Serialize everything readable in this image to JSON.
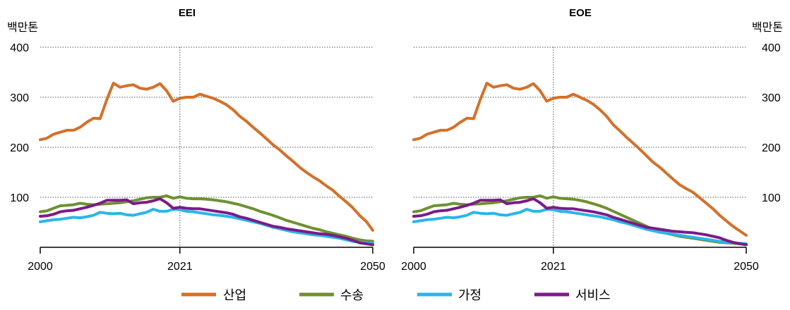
{
  "chart_data": [
    {
      "type": "line",
      "title": "EEI",
      "ylabel": "백만톤",
      "xlim": [
        2000,
        2050
      ],
      "ylim": [
        0,
        400
      ],
      "yticks": [
        100,
        200,
        300,
        400
      ],
      "xticks": [
        2000,
        2021,
        2050
      ],
      "xtick_labels": [
        "2000",
        "2021",
        "2050"
      ],
      "ytick_labels": [
        "100",
        "200",
        "300",
        "400"
      ],
      "grid": "horizontal dotted",
      "reference_line_x": 2021,
      "series": [
        {
          "name": "산업",
          "color": "#D4702A",
          "x": [
            2000,
            2001,
            2002,
            2003,
            2004,
            2005,
            2006,
            2007,
            2008,
            2009,
            2010,
            2011,
            2012,
            2013,
            2014,
            2015,
            2016,
            2017,
            2018,
            2019,
            2020,
            2021,
            2022,
            2023,
            2024,
            2025,
            2026,
            2027,
            2028,
            2029,
            2030,
            2031,
            2032,
            2033,
            2034,
            2035,
            2036,
            2037,
            2038,
            2039,
            2040,
            2041,
            2042,
            2043,
            2044,
            2045,
            2046,
            2047,
            2048,
            2049,
            2050
          ],
          "y": [
            215,
            218,
            226,
            230,
            234,
            234,
            240,
            250,
            258,
            257,
            295,
            328,
            320,
            323,
            325,
            318,
            316,
            320,
            327,
            313,
            292,
            298,
            300,
            300,
            306,
            302,
            298,
            292,
            285,
            275,
            262,
            252,
            240,
            229,
            217,
            205,
            195,
            183,
            172,
            160,
            150,
            141,
            133,
            123,
            114,
            102,
            91,
            79,
            64,
            52,
            34
          ]
        },
        {
          "name": "수송",
          "color": "#6E9131",
          "x": [
            2000,
            2001,
            2002,
            2003,
            2004,
            2005,
            2006,
            2007,
            2008,
            2009,
            2010,
            2011,
            2012,
            2013,
            2014,
            2015,
            2016,
            2017,
            2018,
            2019,
            2020,
            2021,
            2022,
            2023,
            2024,
            2025,
            2026,
            2027,
            2028,
            2029,
            2030,
            2031,
            2032,
            2033,
            2034,
            2035,
            2036,
            2037,
            2038,
            2039,
            2040,
            2041,
            2042,
            2043,
            2044,
            2045,
            2046,
            2047,
            2048,
            2049,
            2050
          ],
          "y": [
            71,
            73,
            78,
            83,
            84,
            85,
            88,
            86,
            85,
            86,
            87,
            88,
            89,
            91,
            93,
            96,
            99,
            100,
            100,
            103,
            98,
            101,
            98,
            97,
            97,
            96,
            95,
            93,
            91,
            88,
            85,
            81,
            77,
            72,
            68,
            64,
            59,
            54,
            50,
            46,
            42,
            38,
            35,
            31,
            28,
            25,
            22,
            18,
            15,
            13,
            12
          ]
        },
        {
          "name": "가정",
          "color": "#29B6E8",
          "x": [
            2000,
            2001,
            2002,
            2003,
            2004,
            2005,
            2006,
            2007,
            2008,
            2009,
            2010,
            2011,
            2012,
            2013,
            2014,
            2015,
            2016,
            2017,
            2018,
            2019,
            2020,
            2021,
            2022,
            2023,
            2024,
            2025,
            2026,
            2027,
            2028,
            2029,
            2030,
            2031,
            2032,
            2033,
            2034,
            2035,
            2036,
            2037,
            2038,
            2039,
            2040,
            2041,
            2042,
            2043,
            2044,
            2045,
            2046,
            2047,
            2048,
            2049,
            2050
          ],
          "y": [
            51,
            53,
            55,
            56,
            58,
            60,
            59,
            61,
            64,
            70,
            68,
            67,
            68,
            65,
            64,
            67,
            70,
            76,
            72,
            72,
            76,
            75,
            72,
            71,
            69,
            67,
            65,
            64,
            62,
            60,
            57,
            54,
            51,
            48,
            44,
            40,
            37,
            34,
            31,
            29,
            27,
            25,
            24,
            22,
            20,
            18,
            15,
            12,
            10,
            9,
            8
          ]
        },
        {
          "name": "서비스",
          "color": "#7B1B89",
          "x": [
            2000,
            2001,
            2002,
            2003,
            2004,
            2005,
            2006,
            2007,
            2008,
            2009,
            2010,
            2011,
            2012,
            2013,
            2014,
            2015,
            2016,
            2017,
            2018,
            2019,
            2020,
            2021,
            2022,
            2023,
            2024,
            2025,
            2026,
            2027,
            2028,
            2029,
            2030,
            2031,
            2032,
            2033,
            2034,
            2035,
            2036,
            2037,
            2038,
            2039,
            2040,
            2041,
            2042,
            2043,
            2044,
            2045,
            2046,
            2047,
            2048,
            2049,
            2050
          ],
          "y": [
            62,
            63,
            66,
            71,
            73,
            74,
            77,
            80,
            84,
            88,
            94,
            94,
            94,
            95,
            87,
            89,
            90,
            93,
            97,
            89,
            78,
            80,
            78,
            77,
            77,
            75,
            73,
            71,
            69,
            66,
            61,
            58,
            54,
            50,
            46,
            42,
            40,
            37,
            35,
            33,
            31,
            29,
            27,
            26,
            24,
            21,
            18,
            14,
            9,
            7,
            5
          ]
        }
      ]
    },
    {
      "type": "line",
      "title": "EOE",
      "ylabel": "백만톤",
      "xlim": [
        2000,
        2050
      ],
      "ylim": [
        0,
        400
      ],
      "yticks": [
        100,
        200,
        300,
        400
      ],
      "xticks": [
        2000,
        2021,
        2050
      ],
      "xtick_labels": [
        "2000",
        "2021",
        "2050"
      ],
      "ytick_labels": [
        "100",
        "200",
        "300",
        "400"
      ],
      "grid": "horizontal dotted",
      "reference_line_x": 2021,
      "series": [
        {
          "name": "산업",
          "color": "#D4702A",
          "x": [
            2000,
            2001,
            2002,
            2003,
            2004,
            2005,
            2006,
            2007,
            2008,
            2009,
            2010,
            2011,
            2012,
            2013,
            2014,
            2015,
            2016,
            2017,
            2018,
            2019,
            2020,
            2021,
            2022,
            2023,
            2024,
            2025,
            2026,
            2027,
            2028,
            2029,
            2030,
            2031,
            2032,
            2033,
            2034,
            2035,
            2036,
            2037,
            2038,
            2039,
            2040,
            2041,
            2042,
            2043,
            2044,
            2045,
            2046,
            2047,
            2048,
            2049,
            2050
          ],
          "y": [
            215,
            218,
            226,
            230,
            234,
            234,
            240,
            250,
            258,
            257,
            295,
            328,
            320,
            323,
            325,
            318,
            316,
            320,
            327,
            313,
            292,
            298,
            300,
            300,
            306,
            300,
            294,
            286,
            275,
            262,
            245,
            233,
            220,
            208,
            196,
            183,
            170,
            160,
            148,
            136,
            125,
            117,
            110,
            99,
            88,
            77,
            64,
            53,
            42,
            33,
            24
          ]
        },
        {
          "name": "수송",
          "color": "#6E9131",
          "x": [
            2000,
            2001,
            2002,
            2003,
            2004,
            2005,
            2006,
            2007,
            2008,
            2009,
            2010,
            2011,
            2012,
            2013,
            2014,
            2015,
            2016,
            2017,
            2018,
            2019,
            2020,
            2021,
            2022,
            2023,
            2024,
            2025,
            2026,
            2027,
            2028,
            2029,
            2030,
            2031,
            2032,
            2033,
            2034,
            2035,
            2036,
            2037,
            2038,
            2039,
            2040,
            2041,
            2042,
            2043,
            2044,
            2045,
            2046,
            2047,
            2048,
            2049,
            2050
          ],
          "y": [
            71,
            73,
            78,
            83,
            84,
            85,
            88,
            86,
            85,
            86,
            87,
            88,
            89,
            91,
            93,
            96,
            99,
            100,
            100,
            103,
            98,
            101,
            98,
            97,
            96,
            94,
            91,
            87,
            83,
            78,
            72,
            66,
            60,
            54,
            48,
            42,
            36,
            32,
            28,
            25,
            22,
            20,
            18,
            16,
            14,
            12,
            10,
            9,
            8,
            7,
            6
          ]
        },
        {
          "name": "가정",
          "color": "#29B6E8",
          "x": [
            2000,
            2001,
            2002,
            2003,
            2004,
            2005,
            2006,
            2007,
            2008,
            2009,
            2010,
            2011,
            2012,
            2013,
            2014,
            2015,
            2016,
            2017,
            2018,
            2019,
            2020,
            2021,
            2022,
            2023,
            2024,
            2025,
            2026,
            2027,
            2028,
            2029,
            2030,
            2031,
            2032,
            2033,
            2034,
            2035,
            2036,
            2037,
            2038,
            2039,
            2040,
            2041,
            2042,
            2043,
            2044,
            2045,
            2046,
            2047,
            2048,
            2049,
            2050
          ],
          "y": [
            51,
            53,
            55,
            56,
            58,
            60,
            59,
            61,
            64,
            70,
            68,
            67,
            68,
            65,
            64,
            67,
            70,
            76,
            72,
            72,
            76,
            75,
            72,
            71,
            69,
            67,
            65,
            63,
            61,
            58,
            55,
            51,
            48,
            44,
            40,
            36,
            33,
            30,
            28,
            26,
            24,
            22,
            20,
            18,
            16,
            14,
            12,
            10,
            9,
            8,
            7
          ]
        },
        {
          "name": "서비스",
          "color": "#7B1B89",
          "x": [
            2000,
            2001,
            2002,
            2003,
            2004,
            2005,
            2006,
            2007,
            2008,
            2009,
            2010,
            2011,
            2012,
            2013,
            2014,
            2015,
            2016,
            2017,
            2018,
            2019,
            2020,
            2021,
            2022,
            2023,
            2024,
            2025,
            2026,
            2027,
            2028,
            2029,
            2030,
            2031,
            2032,
            2033,
            2034,
            2035,
            2036,
            2037,
            2038,
            2039,
            2040,
            2041,
            2042,
            2043,
            2044,
            2045,
            2046,
            2047,
            2048,
            2049,
            2050
          ],
          "y": [
            62,
            63,
            66,
            71,
            73,
            74,
            77,
            80,
            84,
            88,
            94,
            94,
            94,
            95,
            87,
            89,
            90,
            93,
            97,
            89,
            78,
            80,
            78,
            77,
            77,
            75,
            73,
            71,
            68,
            65,
            60,
            56,
            52,
            48,
            44,
            40,
            38,
            36,
            34,
            32,
            31,
            30,
            29,
            27,
            25,
            22,
            19,
            14,
            10,
            7,
            5
          ]
        }
      ]
    }
  ],
  "legend": [
    {
      "label": "산업",
      "color": "#D4702A"
    },
    {
      "label": "수송",
      "color": "#6E9131"
    },
    {
      "label": "가정",
      "color": "#29B6E8"
    },
    {
      "label": "서비스",
      "color": "#7B1B89"
    }
  ]
}
